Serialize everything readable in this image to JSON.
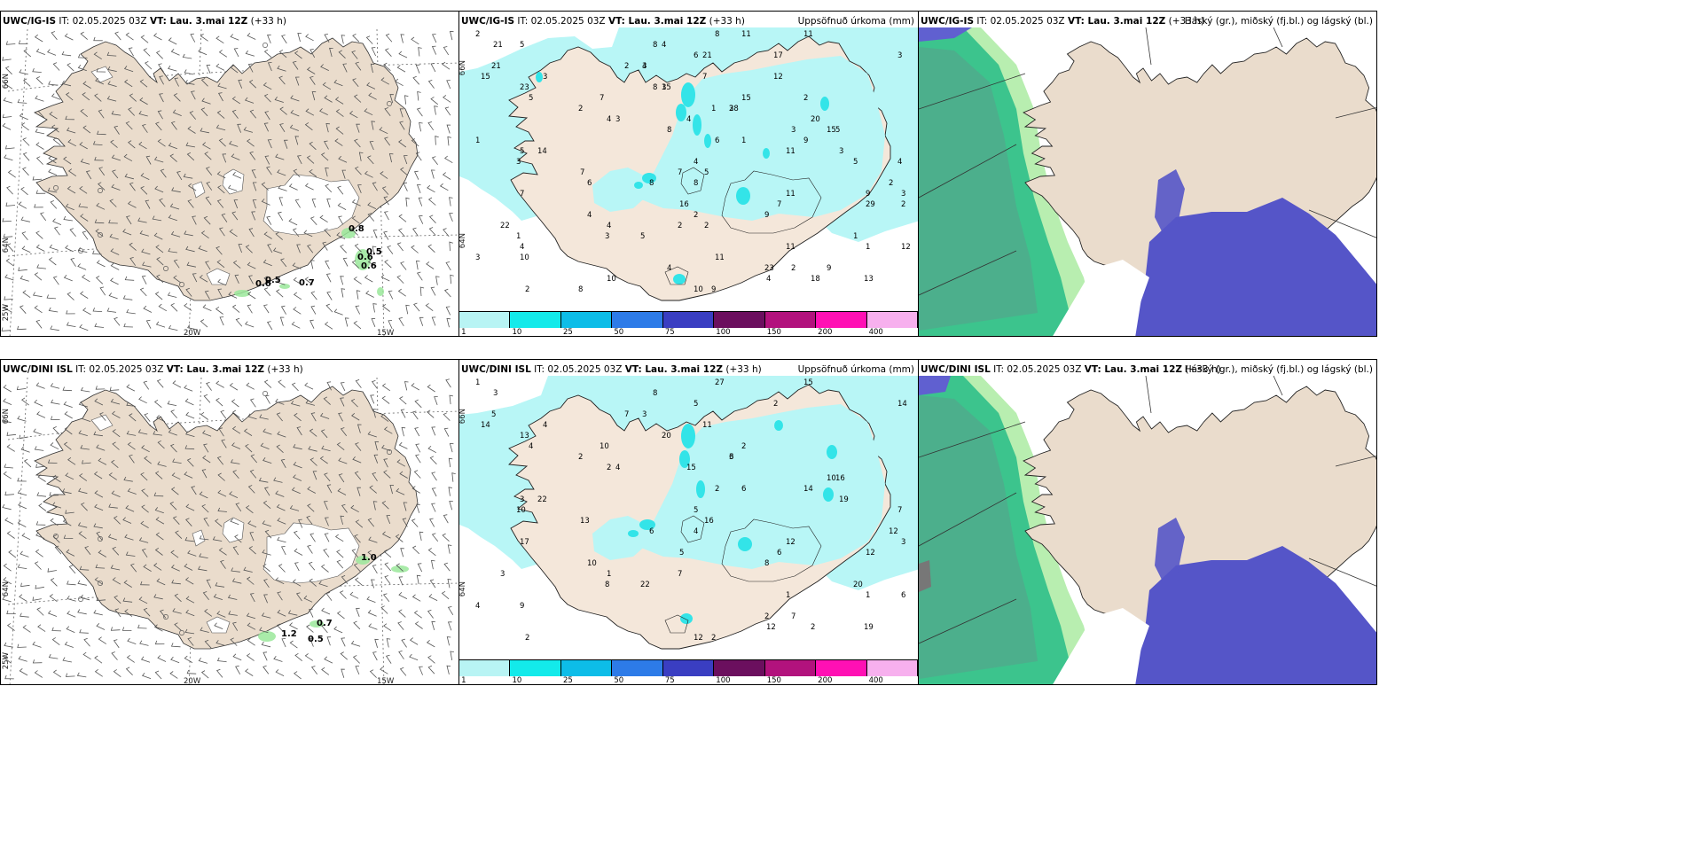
{
  "rows": [
    {
      "model": "UWC/IG-IS",
      "it": "02.05.2025 03Z",
      "vt": "Lau. 3.mai 12Z",
      "lead": "(+33 h)",
      "wind_labels": [
        "0.8",
        "0.5",
        "0.6",
        "0.6",
        "0.5",
        "0.6",
        "0.7"
      ],
      "precip_labels": [
        "2",
        "3",
        "3",
        "4",
        "7",
        "1",
        "2",
        "2",
        "3",
        "3",
        "7",
        "5",
        "4",
        "3",
        "7",
        "1",
        "2",
        "4",
        "23",
        "21",
        "15",
        "5",
        "7",
        "9",
        "10",
        "8",
        "15",
        "4",
        "4",
        "16",
        "12",
        "10",
        "21",
        "28",
        "14",
        "11",
        "3",
        "13",
        "6",
        "5",
        "9",
        "8",
        "22",
        "2",
        "8",
        "23",
        "15",
        "5",
        "4",
        "3",
        "11",
        "7",
        "4",
        "3",
        "29",
        "11",
        "9",
        "4",
        "2",
        "5",
        "3",
        "1",
        "18",
        "17",
        "15",
        "6",
        "8",
        "2",
        "4",
        "4",
        "3",
        "8",
        "7",
        "2",
        "11",
        "11",
        "12",
        "20",
        "5",
        "2",
        "4",
        "8",
        "3",
        "1",
        "11",
        "9",
        "1",
        "10",
        "21",
        "2",
        "1",
        "6",
        "2",
        "9",
        "5",
        "8",
        "3"
      ]
    },
    {
      "model": "UWC/DINI ISL",
      "it": "02.05.2025 03Z",
      "vt": "Lau. 3.mai 12Z",
      "lead": "(+33 h)",
      "wind_labels": [
        "1.0",
        "0.7",
        "1.2",
        "0.5"
      ],
      "precip_labels": [
        "1",
        "4",
        "4",
        "5",
        "6",
        "1",
        "2",
        "7",
        "3",
        "19",
        "17",
        "22",
        "12",
        "14",
        "10",
        "6",
        "12",
        "1",
        "2",
        "3",
        "20",
        "16",
        "13",
        "8",
        "9",
        "27",
        "14",
        "15",
        "7",
        "5",
        "6",
        "12",
        "5",
        "6",
        "22",
        "12",
        "8",
        "19",
        "5",
        "4",
        "14",
        "6",
        "3",
        "7",
        "8",
        "13",
        "10",
        "16",
        "10",
        "4",
        "15",
        "11",
        "2",
        "10",
        "12",
        "1",
        "2",
        "3",
        "2",
        "3",
        "3",
        "20",
        "2",
        "2",
        "2",
        "2",
        "4",
        "7"
      ]
    }
  ],
  "titles": {
    "precip_title": "Uppsöfnuð úrkoma (mm)",
    "cloud_title": "Háský (gr.), miðský (fj.bl.) og lágský (bl.)",
    "it_label": "IT:",
    "vt_label": "VT:"
  },
  "axis": {
    "lon_labels": [
      "20W",
      "15W"
    ],
    "lat_labels": [
      "66N",
      "64N",
      "25W"
    ]
  },
  "colorbar": {
    "labels": [
      "1",
      "10",
      "25",
      "50",
      "75",
      "100",
      "150",
      "200",
      "400"
    ],
    "colors": [
      "#b8f4f4",
      "#13eaea",
      "#0dbde8",
      "#2d7be8",
      "#3a3ec2",
      "#6b0f5e",
      "#b2127d",
      "#ff10b4",
      "#f7b0ee"
    ]
  },
  "colors": {
    "land": "#eadccc",
    "precip_light": "#b8f6f6",
    "precip_mid": "#33e4e8",
    "high_cloud": "#2fbf8a",
    "mid_cloud": "#b8eeb0",
    "low_cloud": "#5555c8"
  }
}
